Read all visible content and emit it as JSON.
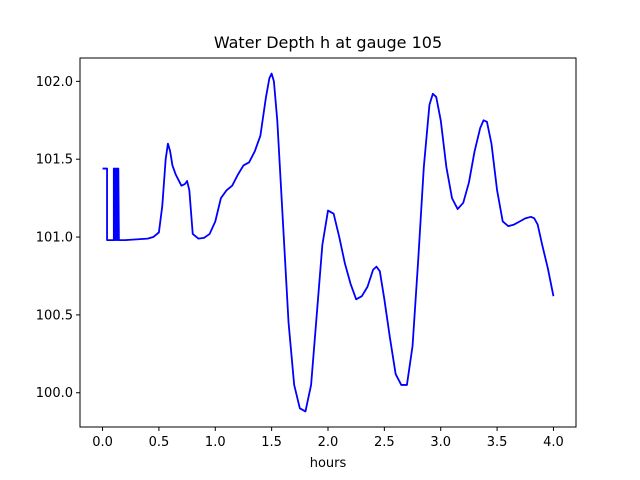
{
  "chart_data": {
    "type": "line",
    "title": "Water Depth h at gauge 105",
    "xlabel": "hours",
    "ylabel": "",
    "xlim": [
      -0.2,
      4.2
    ],
    "ylim": [
      99.78,
      102.15
    ],
    "grid": false,
    "xticks": [
      0.0,
      0.5,
      1.0,
      1.5,
      2.0,
      2.5,
      3.0,
      3.5,
      4.0
    ],
    "xtick_labels": [
      "0.0",
      "0.5",
      "1.0",
      "1.5",
      "2.0",
      "2.5",
      "3.0",
      "3.5",
      "4.0"
    ],
    "yticks": [
      100.0,
      100.5,
      101.0,
      101.5,
      102.0
    ],
    "ytick_labels": [
      "100.0",
      "100.5",
      "101.0",
      "101.5",
      "102.0"
    ],
    "series": [
      {
        "color": "#0000ff",
        "x": [
          0.0,
          0.04,
          0.04,
          0.1,
          0.1,
          0.105,
          0.11,
          0.115,
          0.12,
          0.125,
          0.13,
          0.135,
          0.14,
          0.145,
          0.15,
          0.2,
          0.3,
          0.4,
          0.45,
          0.5,
          0.53,
          0.56,
          0.58,
          0.6,
          0.62,
          0.65,
          0.7,
          0.73,
          0.75,
          0.77,
          0.8,
          0.85,
          0.9,
          0.95,
          1.0,
          1.05,
          1.1,
          1.15,
          1.2,
          1.25,
          1.3,
          1.35,
          1.4,
          1.45,
          1.48,
          1.5,
          1.52,
          1.55,
          1.6,
          1.65,
          1.7,
          1.75,
          1.8,
          1.85,
          1.9,
          1.95,
          2.0,
          2.05,
          2.1,
          2.15,
          2.2,
          2.25,
          2.3,
          2.35,
          2.4,
          2.43,
          2.46,
          2.5,
          2.55,
          2.6,
          2.65,
          2.7,
          2.75,
          2.8,
          2.85,
          2.9,
          2.93,
          2.96,
          3.0,
          3.05,
          3.1,
          3.15,
          3.2,
          3.25,
          3.3,
          3.35,
          3.38,
          3.41,
          3.45,
          3.5,
          3.55,
          3.6,
          3.65,
          3.7,
          3.75,
          3.8,
          3.83,
          3.86,
          3.9,
          3.95,
          4.0
        ],
        "y": [
          101.44,
          101.44,
          100.98,
          100.98,
          101.44,
          100.98,
          101.44,
          100.98,
          101.44,
          100.98,
          101.44,
          100.98,
          101.44,
          100.98,
          100.98,
          100.98,
          100.985,
          100.99,
          101.0,
          101.03,
          101.2,
          101.5,
          101.6,
          101.55,
          101.46,
          101.4,
          101.33,
          101.34,
          101.36,
          101.3,
          101.02,
          100.99,
          100.995,
          101.02,
          101.1,
          101.25,
          101.3,
          101.33,
          101.4,
          101.46,
          101.48,
          101.55,
          101.65,
          101.9,
          102.02,
          102.05,
          102.0,
          101.75,
          101.1,
          100.45,
          100.05,
          99.9,
          99.88,
          100.05,
          100.5,
          100.95,
          101.17,
          101.15,
          101.0,
          100.83,
          100.7,
          100.6,
          100.62,
          100.68,
          100.79,
          100.81,
          100.78,
          100.6,
          100.35,
          100.12,
          100.05,
          100.05,
          100.3,
          100.85,
          101.45,
          101.85,
          101.92,
          101.9,
          101.75,
          101.45,
          101.25,
          101.18,
          101.22,
          101.35,
          101.55,
          101.7,
          101.75,
          101.74,
          101.6,
          101.3,
          101.1,
          101.07,
          101.08,
          101.1,
          101.12,
          101.13,
          101.12,
          101.08,
          100.95,
          100.8,
          100.62
        ]
      }
    ]
  }
}
